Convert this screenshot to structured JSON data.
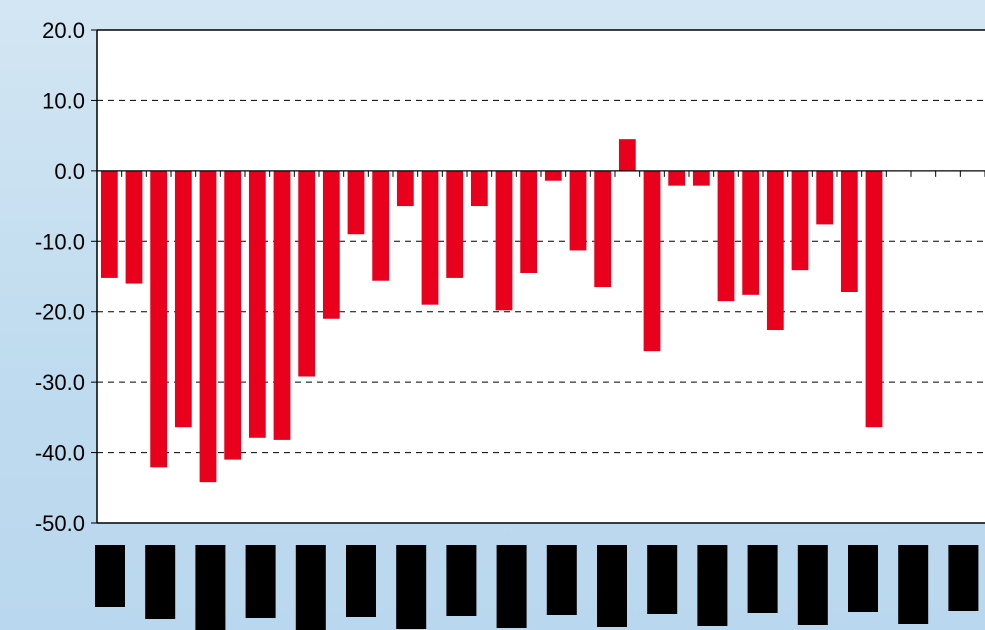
{
  "chart_data": {
    "type": "bar",
    "title": "",
    "xlabel": "",
    "ylabel": "",
    "ylim": [
      -50,
      20
    ],
    "y_ticks": [
      "20.0",
      "10.0",
      "0.0",
      "-10.0",
      "-20.0",
      "-30.0",
      "-40.0",
      "-50.0"
    ],
    "grid": "horizontal dashed",
    "legend": "none",
    "categories": [
      "",
      "",
      "",
      "",
      "",
      "",
      "",
      "",
      "",
      "",
      "",
      "",
      "",
      "",
      "",
      "",
      "",
      "",
      "",
      "",
      "",
      "",
      "",
      "",
      "",
      "",
      "",
      "",
      "",
      "",
      "",
      "",
      "",
      "",
      "",
      ""
    ],
    "series": [
      {
        "values": [
          -15.2,
          -16.0,
          -42.1,
          -36.4,
          -44.2,
          -41.0,
          -37.9,
          -38.2,
          -29.2,
          -21.0,
          -9.0,
          -15.6,
          -5.0,
          -19.0,
          -15.2,
          -5.0,
          -19.8,
          -14.5,
          -1.4,
          -11.3,
          -16.5,
          4.5,
          -25.6,
          -2.1,
          -2.1,
          -18.5,
          -17.6,
          -22.6,
          -14.1,
          -7.6,
          -17.2,
          -36.4,
          null,
          null,
          null,
          null
        ],
        "color": "#e8001c"
      }
    ],
    "x_labels_note": "redacted"
  },
  "colors": {
    "background_top": "#d3e6f3",
    "background_bottom": "#b9d7ee",
    "plot_area": "#ffffff",
    "bar": "#e8001c",
    "redaction": "#000000"
  }
}
